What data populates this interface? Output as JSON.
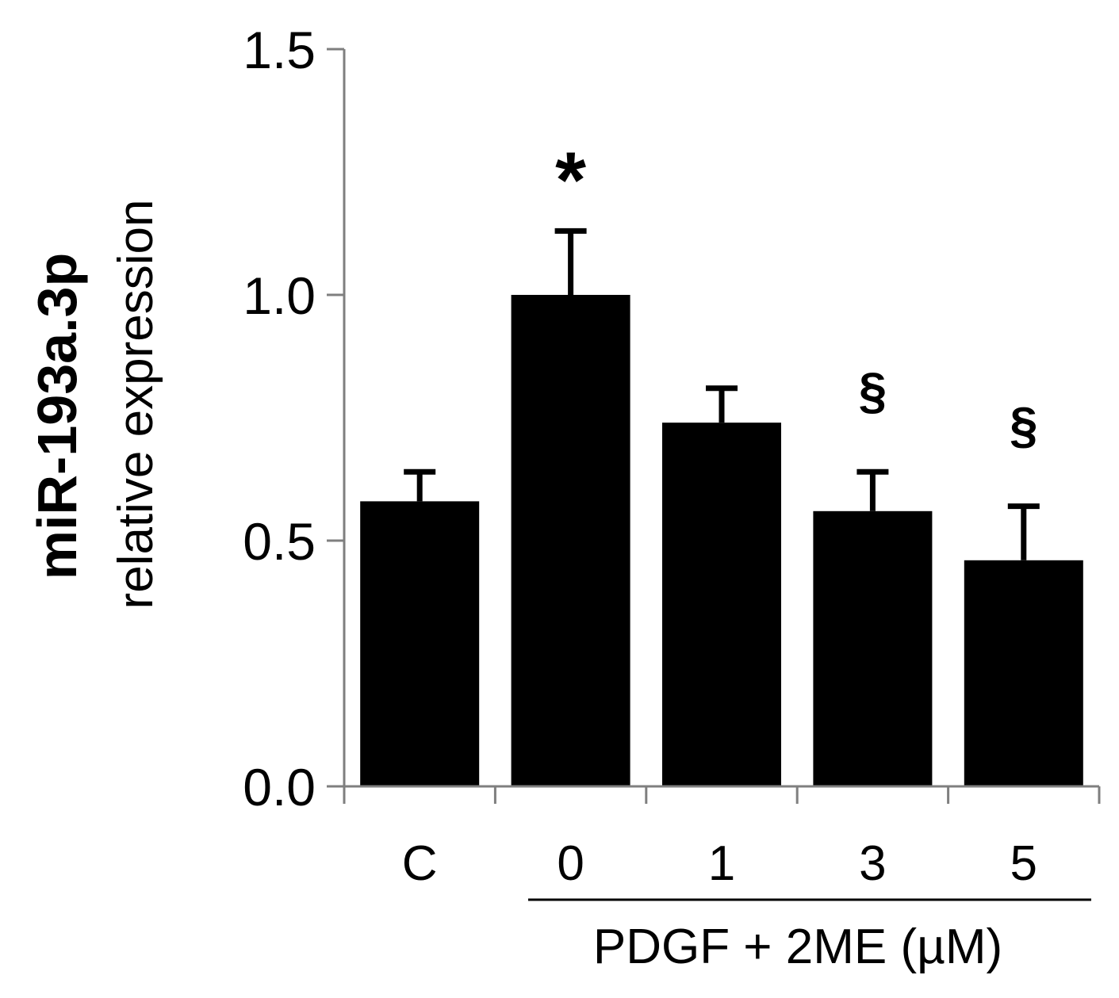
{
  "chart_data": {
    "type": "bar",
    "categories": [
      "C",
      "0",
      "1",
      "3",
      "5"
    ],
    "values": [
      0.58,
      1.0,
      0.74,
      0.56,
      0.46
    ],
    "errors": [
      0.06,
      0.13,
      0.07,
      0.08,
      0.11
    ],
    "annotations": [
      "",
      "*",
      "",
      "§",
      "§"
    ],
    "ylabel_line1": "miR-193a.3p",
    "ylabel_line2": "relative expression",
    "group_label": "PDGF + 2ME (µM)",
    "ylim": [
      0,
      1.5
    ],
    "yticks": [
      "0.0",
      "0.5",
      "1.0",
      "1.5"
    ],
    "bar_color": "#000000",
    "grid": false,
    "legend": "none"
  }
}
